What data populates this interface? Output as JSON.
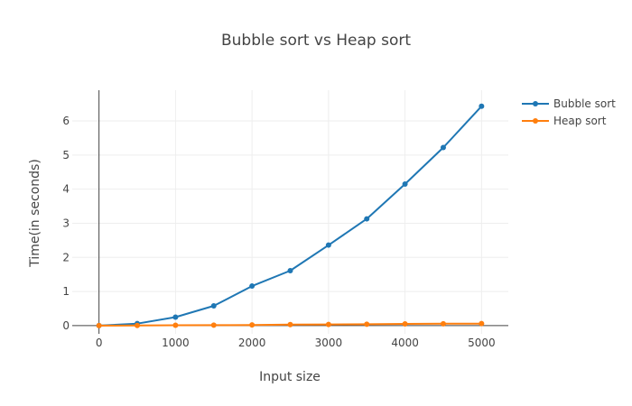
{
  "chart_data": {
    "type": "line",
    "title": "Bubble sort vs Heap sort",
    "xlabel": "Input size",
    "ylabel": "Time(in seconds)",
    "x": [
      0,
      500,
      1000,
      1500,
      2000,
      2500,
      3000,
      3500,
      4000,
      4500,
      5000
    ],
    "series": [
      {
        "name": "Bubble sort",
        "color": "#1f77b4",
        "values": [
          0.0,
          0.06,
          0.25,
          0.58,
          1.16,
          1.61,
          2.36,
          3.13,
          4.15,
          5.22,
          6.43
        ]
      },
      {
        "name": "Heap sort",
        "color": "#ff7f0e",
        "values": [
          0.0,
          0.005,
          0.01,
          0.015,
          0.02,
          0.03,
          0.035,
          0.04,
          0.05,
          0.055,
          0.06
        ]
      }
    ],
    "xlim": [
      -350,
      5350
    ],
    "ylim": [
      -0.24,
      6.9
    ],
    "xticks": [
      0,
      1000,
      2000,
      3000,
      4000,
      5000
    ],
    "yticks": [
      0,
      1,
      2,
      3,
      4,
      5,
      6
    ],
    "xtick_labels": [
      "0",
      "1000",
      "2000",
      "3000",
      "4000",
      "5000"
    ],
    "ytick_labels": [
      "0",
      "1",
      "2",
      "3",
      "4",
      "5",
      "6"
    ],
    "grid": true,
    "legend_position": "top-right"
  }
}
